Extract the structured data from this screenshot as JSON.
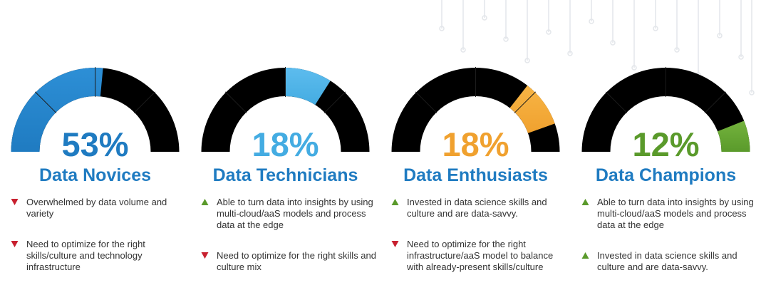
{
  "colors": {
    "track": "#000000",
    "title": "#1f7bc1",
    "down": "#c8202f",
    "up": "#5a9a2b",
    "body_text": "#333333"
  },
  "segments": [
    {
      "percent": "53%",
      "fill_fraction": 0.53,
      "accent": "#1f7bc1",
      "accent_light": "#2d8fd6",
      "name": "Data Novices",
      "bullets": [
        {
          "direction": "down",
          "icon": "down-triangle-icon",
          "text": "Overwhelmed by data volume and variety"
        },
        {
          "direction": "down",
          "icon": "down-triangle-icon",
          "text": "Need to optimize for the right skills/culture and technology infrastructure"
        }
      ]
    },
    {
      "percent": "18%",
      "fill_fraction": 0.18,
      "accent": "#44ace2",
      "accent_light": "#5dbcee",
      "name": "Data Technicians",
      "bullets": [
        {
          "direction": "up",
          "icon": "up-triangle-icon",
          "text": "Able to turn data into insights by using multi-cloud/aaS models and process data at the edge"
        },
        {
          "direction": "down",
          "icon": "down-triangle-icon",
          "text": "Need to optimize for the right skills and culture mix"
        }
      ]
    },
    {
      "percent": "18%",
      "fill_fraction": 0.18,
      "accent": "#f0a12f",
      "accent_light": "#f7b545",
      "name": "Data Enthusiasts",
      "bullets": [
        {
          "direction": "up",
          "icon": "up-triangle-icon",
          "text": "Invested in data science skills and culture and are data-savvy."
        },
        {
          "direction": "down",
          "icon": "down-triangle-icon",
          "text": "Need to optimize for the right infrastructure/aaS model to balance with already-present skills/culture"
        }
      ]
    },
    {
      "percent": "12%",
      "fill_fraction": 0.12,
      "accent": "#5a9a2b",
      "accent_light": "#74b33d",
      "name": "Data Champions",
      "bullets": [
        {
          "direction": "up",
          "icon": "up-triangle-icon",
          "text": "Able to turn data into insights by using multi-cloud/aaS models and process data at the edge"
        },
        {
          "direction": "up",
          "icon": "up-triangle-icon",
          "text": "Invested in data science skills and culture and are data-savvy."
        }
      ]
    }
  ]
}
